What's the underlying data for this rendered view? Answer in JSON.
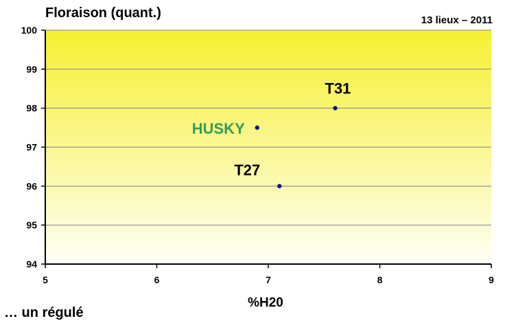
{
  "header": {
    "title": "Floraison (quant.)",
    "subtitle": "13 lieux – 2011"
  },
  "footer": {
    "text": "… un régulé"
  },
  "chart_data": {
    "type": "scatter",
    "title": "Floraison (quant.)",
    "subtitle": "13 lieux – 2011",
    "xlabel": "%H20",
    "ylabel": "",
    "xlim": [
      5,
      9
    ],
    "ylim": [
      94,
      100
    ],
    "xticks": [
      5,
      6,
      7,
      8,
      9
    ],
    "yticks": [
      94,
      95,
      96,
      97,
      98,
      99,
      100
    ],
    "grid": "horizontal",
    "background": "vertical gradient from yellow (top) to white (bottom)",
    "points": [
      {
        "label": "T31",
        "x": 7.6,
        "y": 98.0,
        "label_color": "#000000"
      },
      {
        "label": "HUSKY",
        "x": 6.9,
        "y": 97.5,
        "label_color": "#3a9a5a"
      },
      {
        "label": "T27",
        "x": 7.1,
        "y": 96.0,
        "label_color": "#000000"
      }
    ],
    "colors": {
      "marker": "#0a1a78",
      "grid": "#808080",
      "gradient_top": "#f6f030",
      "gradient_bottom": "#fffff6"
    }
  }
}
